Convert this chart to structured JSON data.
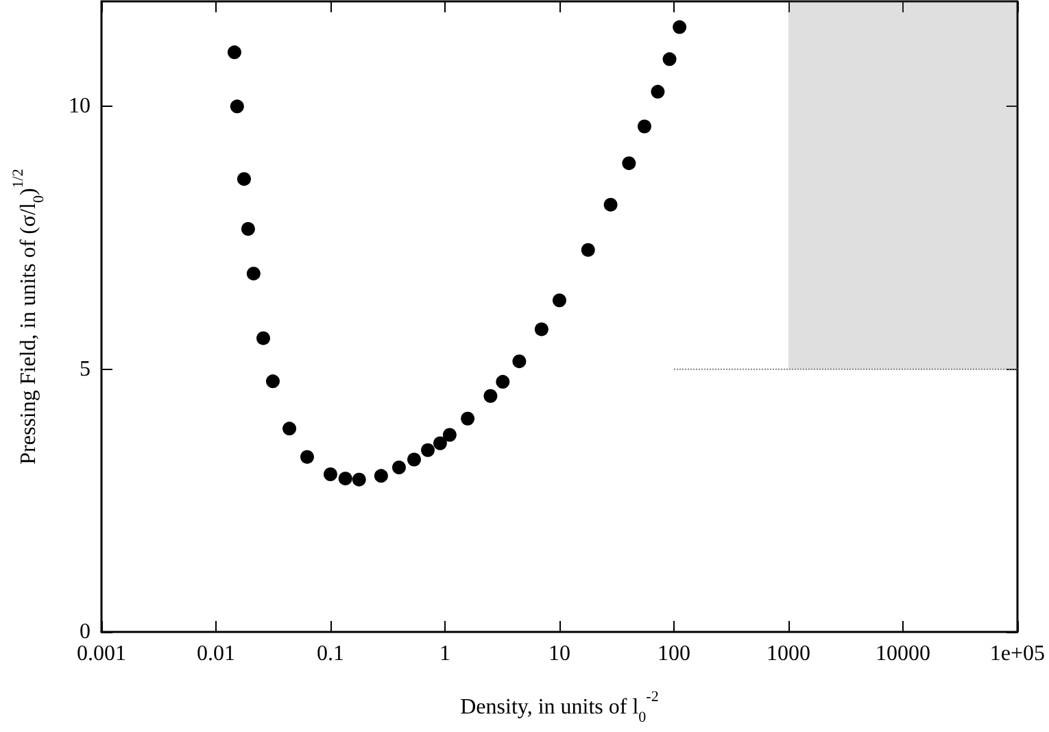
{
  "chart_data": {
    "type": "scatter",
    "xlabel": "Density, in units of l$_{0}$$^{-2}$",
    "ylabel": "Pressing Field, in units of (σ/l$_{0}$)$^{1/2}$",
    "log": "x",
    "xlim": [
      0.001,
      100000
    ],
    "xticks": [
      0.001,
      0.01,
      0.1,
      1,
      10,
      100,
      1000,
      10000,
      {
        "value": 100000,
        "label": "1e+05"
      }
    ],
    "ylim": [
      0,
      12
    ],
    "yticks": [
      0,
      5,
      10
    ],
    "grid": false,
    "series": [
      {
        "type": "line",
        "color": "#808080",
        "line_style": "dotted",
        "marker": "none",
        "x": [
          100,
          1000,
          100000
        ],
        "values": [
          5,
          5,
          5
        ],
        "lower": [
          null,
          5,
          5
        ],
        "upper": [
          null,
          12,
          12
        ]
      },
      {
        "marker": "circle",
        "color": "#000000",
        "x": [
          0.0145,
          0.0153,
          0.0176,
          0.0191,
          0.0213,
          0.0259,
          0.0314,
          0.0438,
          0.0626,
          0.1,
          0.135,
          0.178,
          0.277,
          0.397,
          0.538,
          0.709,
          0.908,
          1.1,
          1.58,
          2.5,
          3.2,
          4.46,
          6.98,
          10,
          17.8,
          28,
          40.5,
          55.3,
          72.3,
          91.6,
          112
        ],
        "values": [
          11.03,
          10.0,
          8.62,
          7.67,
          6.82,
          5.59,
          4.77,
          3.87,
          3.33,
          3.0,
          2.92,
          2.9,
          2.97,
          3.13,
          3.28,
          3.46,
          3.59,
          3.75,
          4.06,
          4.49,
          4.76,
          5.15,
          5.76,
          6.31,
          7.27,
          8.13,
          8.92,
          9.62,
          10.28,
          10.9,
          11.51
        ]
      }
    ]
  }
}
